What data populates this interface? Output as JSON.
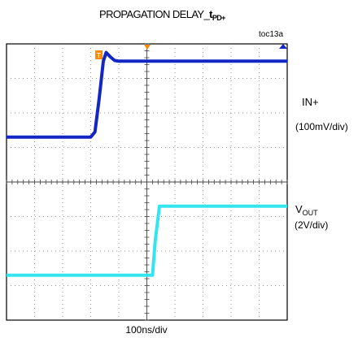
{
  "chart_data": {
    "type": "line",
    "title": "PROPAGATION DELAY_",
    "title_sub": "t",
    "title_sub2": "PD+",
    "figure_id": "toc13a",
    "trigger_label": "T",
    "time_per_div_ns": 100,
    "x_divisions": 10,
    "y_divisions": 8,
    "xlabel": "100ns/div",
    "grid": true,
    "series": [
      {
        "name": "IN+",
        "scale_label": "(100mV/div)",
        "color": "#1326c4",
        "x": [
          0,
          3.0,
          3.15,
          3.3,
          3.45,
          3.55,
          3.7,
          3.85,
          4.0,
          10
        ],
        "y": [
          5.3,
          5.3,
          5.45,
          6.4,
          7.5,
          7.75,
          7.62,
          7.52,
          7.5,
          7.5
        ]
      },
      {
        "name": "V",
        "name_sub": "OUT",
        "scale_label": "(2V/div)",
        "color": "#34e5ef",
        "x": [
          0,
          5.2,
          5.3,
          5.45,
          10
        ],
        "y": [
          1.3,
          1.3,
          2.3,
          3.3,
          3.3
        ]
      }
    ]
  }
}
